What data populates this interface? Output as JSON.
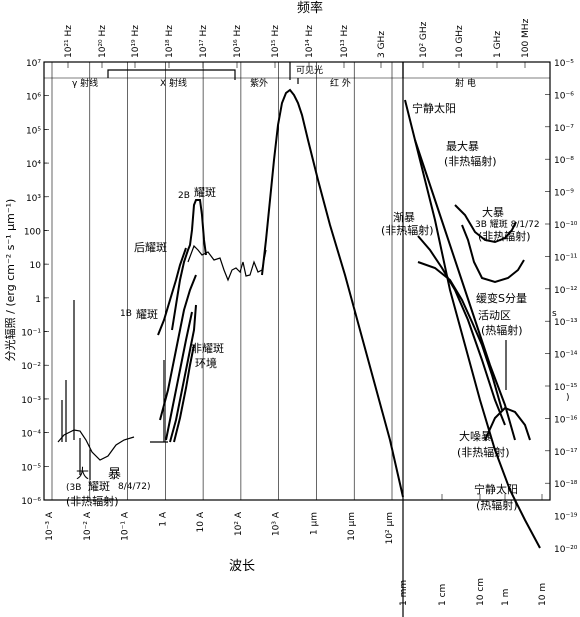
{
  "chart_data": {
    "type": "line",
    "title": "频率",
    "xlabel": "波长",
    "ylabel": "分光辐照 / (erg cm⁻² s⁻¹ μm⁻¹)",
    "y_left_scale": "log",
    "ylim": [
      1e-06,
      10000000.0
    ],
    "y_left_ticks": [
      "10⁻⁶",
      "10⁻⁵",
      "10⁻⁴",
      "10⁻³",
      "10⁻²",
      "10⁻¹",
      "1",
      "10",
      "100",
      "10³",
      "10⁴",
      "10⁵",
      "10⁶",
      "10⁷"
    ],
    "y_right_ticks": [
      "10⁻⁵",
      "10⁻⁶",
      "10⁻⁷",
      "10⁻⁸",
      "10⁻⁹",
      "10⁻¹⁰",
      "10⁻¹¹",
      "10⁻¹²",
      "10⁻¹³",
      "10⁻¹⁴",
      "10⁻¹⁵",
      "10⁻¹⁶",
      "10⁻¹⁷",
      "10⁻¹⁸",
      "10⁻¹⁹",
      "10⁻²⁰"
    ],
    "x_bottom_ticks_left": [
      "10⁻³ A",
      "10⁻² A",
      "10⁻¹ A",
      "1 A",
      "10 A",
      "10² A",
      "10³ A",
      "1 μm",
      "10 μm",
      "10² μm"
    ],
    "x_bottom_ticks_right": [
      "1 mm",
      "1 cm",
      "10 cm",
      "1 m",
      "10 m"
    ],
    "x_top_ticks_left": [
      "10²¹ Hz",
      "10²⁰ Hz",
      "10¹⁹ Hz",
      "10¹⁸ Hz",
      "10¹⁷ Hz",
      "10¹⁶ Hz",
      "10¹⁵ Hz",
      "10¹⁴ Hz",
      "10¹³ Hz",
      "3 GHz"
    ],
    "x_top_ticks_right": [
      "10² GHz",
      "10 GHz",
      "1 GHz",
      "100 MHz"
    ],
    "bands": [
      "γ 射线",
      "X 射线",
      "紫外",
      "可见光",
      "红 外",
      "射 电"
    ],
    "annotations": [
      "2B",
      "耀斑",
      "后耀斑",
      "1B",
      "耀斑",
      "非耀斑",
      "环境",
      "大",
      "暴",
      "(3B",
      "耀斑",
      "8/4/72)",
      "(非热辐射)",
      "宁静太阳",
      "最大暴",
      "(非热辐射)",
      "大暴",
      "3B 耀斑 8/1/72",
      "(非热辐射)",
      "渐暴",
      "(非热辐射)",
      "缓变S分量",
      "活动区",
      "(热辐射)",
      "大噪暴",
      "(非热辐射)",
      "宁静太阳",
      "(热辐射)",
      "s",
      ")"
    ]
  }
}
